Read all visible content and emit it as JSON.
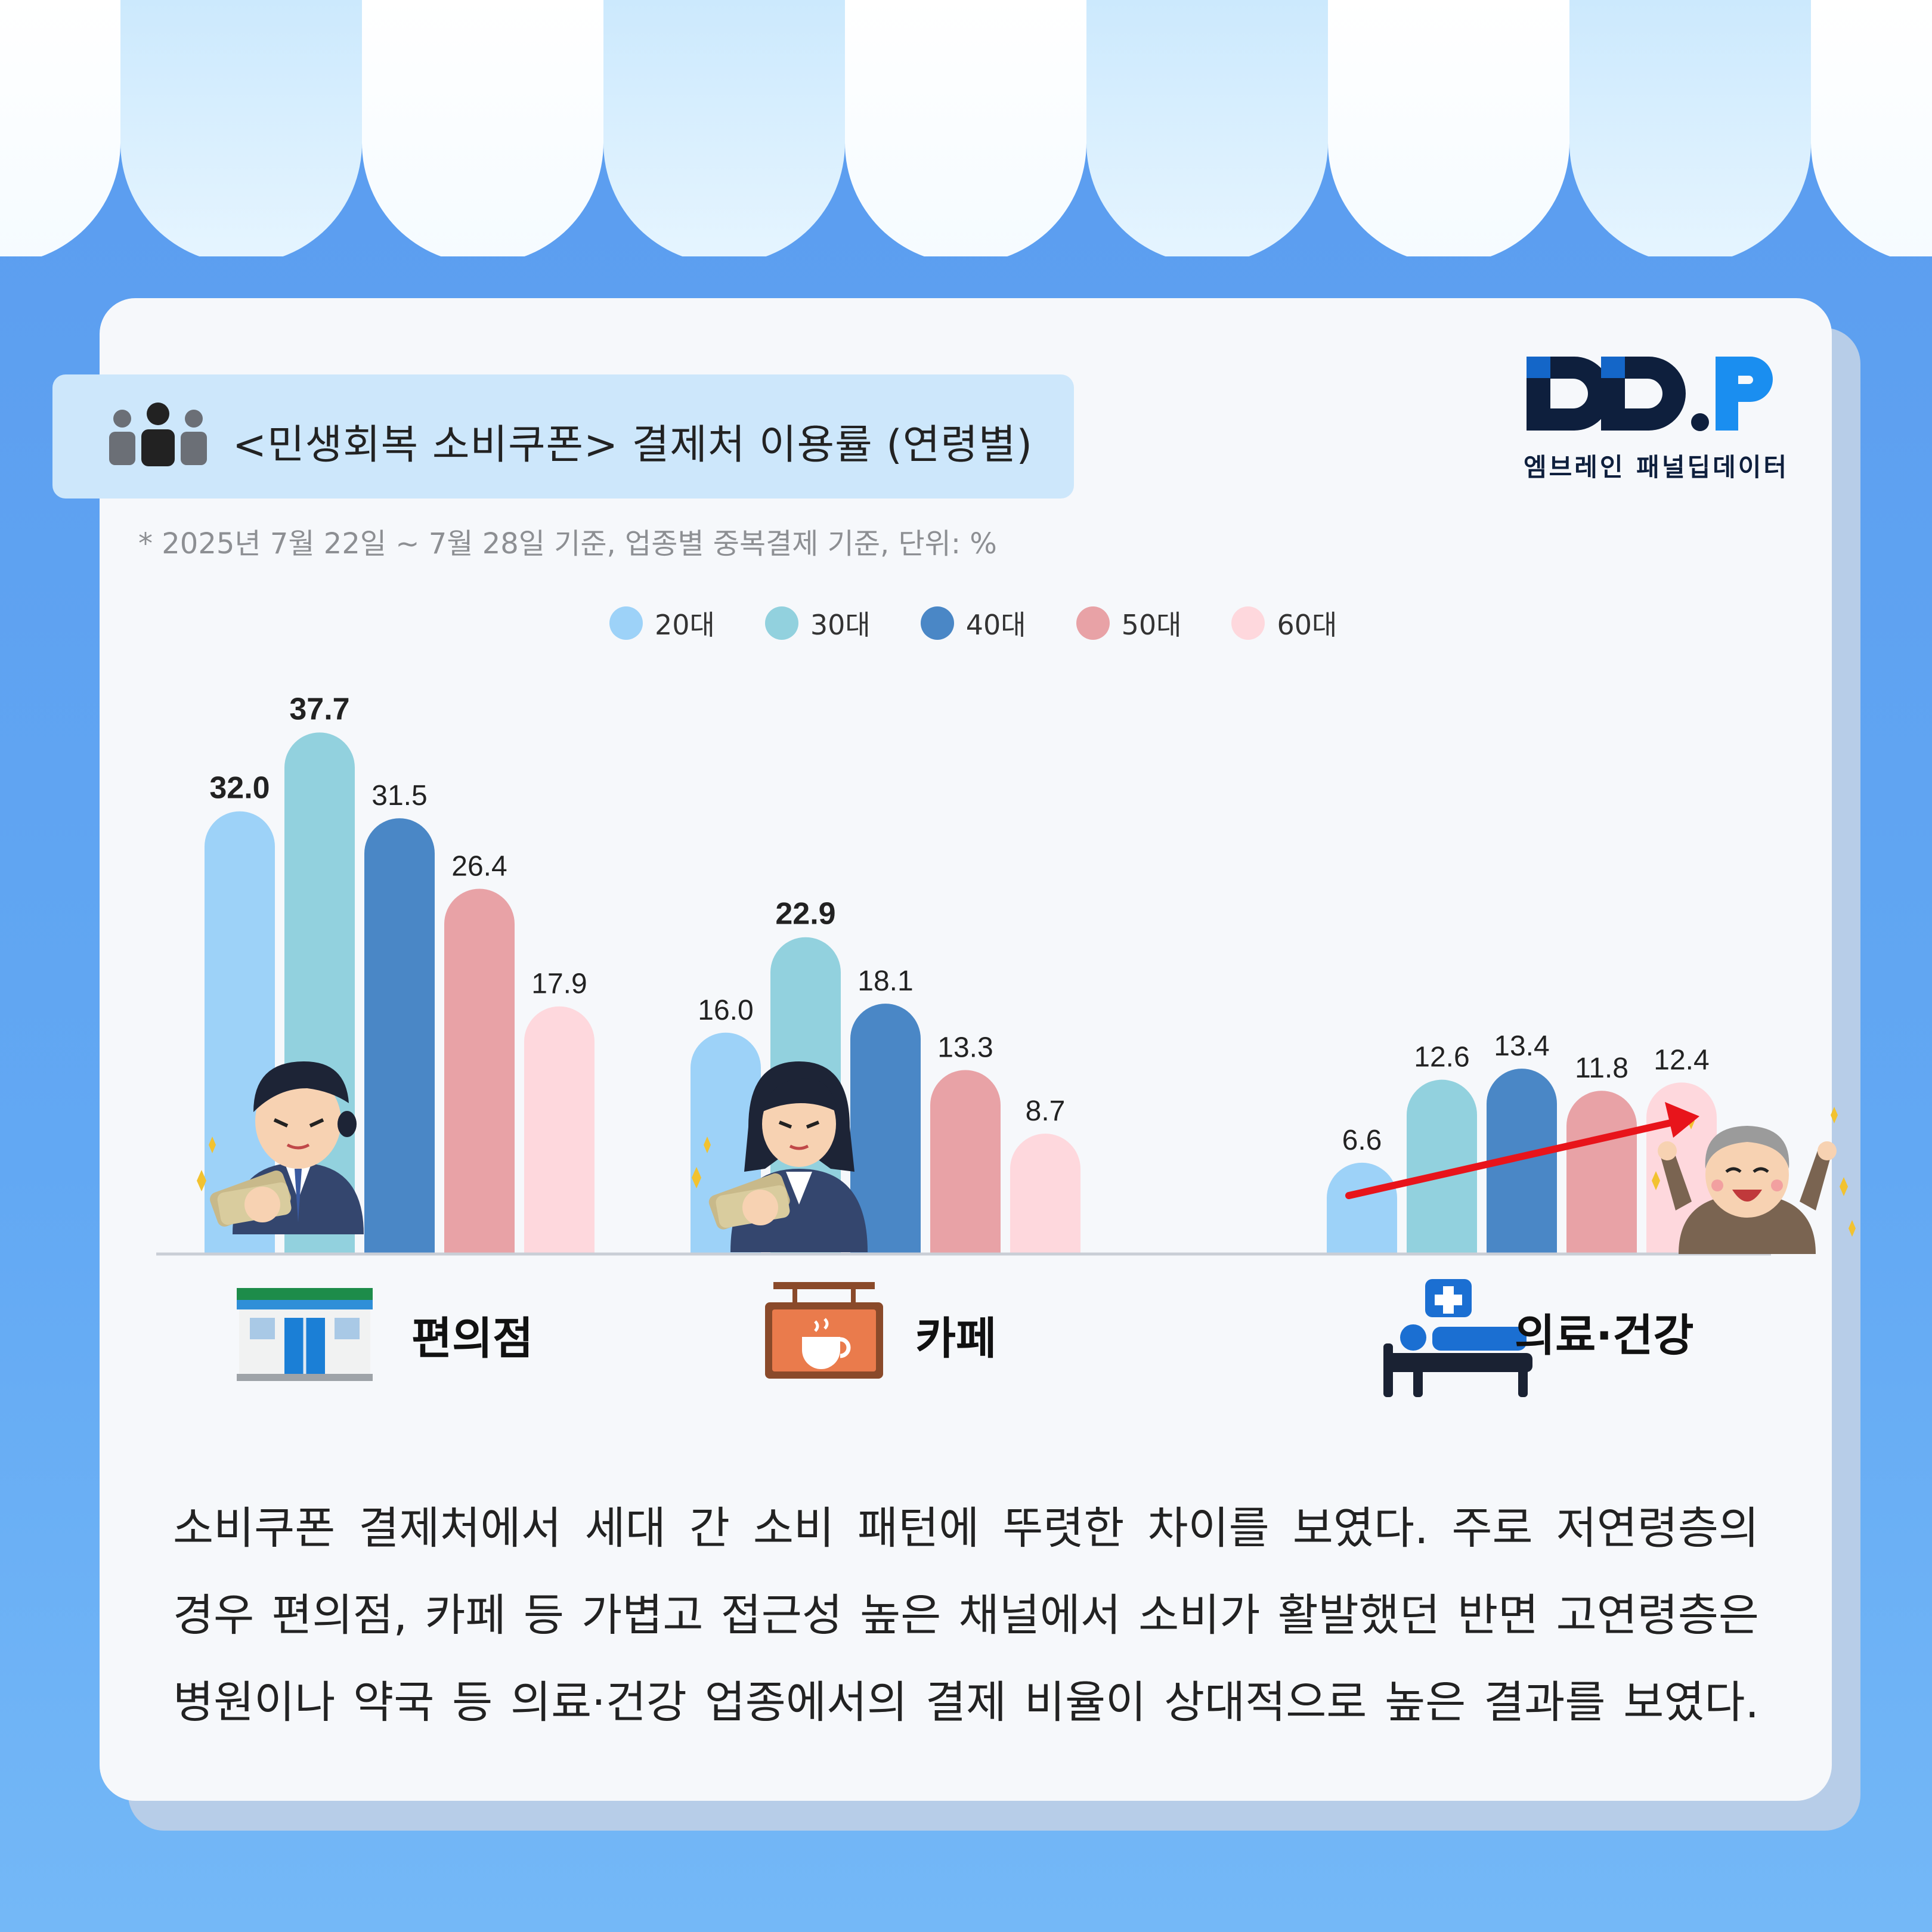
{
  "header": {
    "title": "<민생회복 소비쿠폰> 결제처 이용률 (연령별)",
    "subtitle": "* 2025년 7월 22일 ~ 7월 28일 기준, 업종별 중복결제 기준, 단위: %"
  },
  "logo": {
    "mark": "DD.P",
    "text": "엠브레인 패널딥데이터"
  },
  "colors": {
    "background": "#5fa2f0",
    "card": "#f6f8fb",
    "title_box": "#cde7fb",
    "trend_arrow": "#e8141b"
  },
  "chart_data": {
    "type": "bar",
    "categories": [
      "편의점",
      "카페",
      "의료·건강"
    ],
    "category_icons": [
      "convenience-store-icon",
      "cafe-sign-icon",
      "medical-bed-icon"
    ],
    "series": [
      {
        "name": "20대",
        "color": "#9dd2f8",
        "values": [
          32.0,
          16.0,
          6.6
        ]
      },
      {
        "name": "30대",
        "color": "#92d1de",
        "values": [
          37.7,
          22.9,
          12.6
        ]
      },
      {
        "name": "40대",
        "color": "#4a87c6",
        "values": [
          31.5,
          18.1,
          13.4
        ]
      },
      {
        "name": "50대",
        "color": "#e8a2a6",
        "values": [
          26.4,
          13.3,
          11.8
        ]
      },
      {
        "name": "60대",
        "color": "#fed8dd",
        "values": [
          17.9,
          8.7,
          12.4
        ]
      }
    ],
    "value_labels": [
      [
        "32.0",
        "37.7",
        "31.5",
        "26.4",
        "17.9"
      ],
      [
        "16.0",
        "22.9",
        "18.1",
        "13.3",
        "8.7"
      ],
      [
        "6.6",
        "12.6",
        "13.4",
        "11.8",
        "12.4"
      ]
    ],
    "bold_values": [
      [
        0,
        0
      ],
      [
        0,
        1
      ],
      [
        1,
        1
      ]
    ],
    "unit": "%",
    "ylim": [
      0,
      40
    ],
    "legend_position": "top-center",
    "grid": false,
    "annotations": [
      "rising trend arrow across 의료·건강 age groups"
    ]
  },
  "summary": {
    "lines": [
      "소비쿠폰 결제처에서 세대 간 소비 패턴에 뚜렷한 차이를 보였다. 주로 저연령층의",
      "경우 편의점, 카페 등 가볍고 접근성 높은 채널에서 소비가 활발했던 반면 고연령층은",
      "병원이나 약국 등 의료·건강 업종에서의 결제 비율이 상대적으로 높은 결과를 보였다."
    ]
  }
}
